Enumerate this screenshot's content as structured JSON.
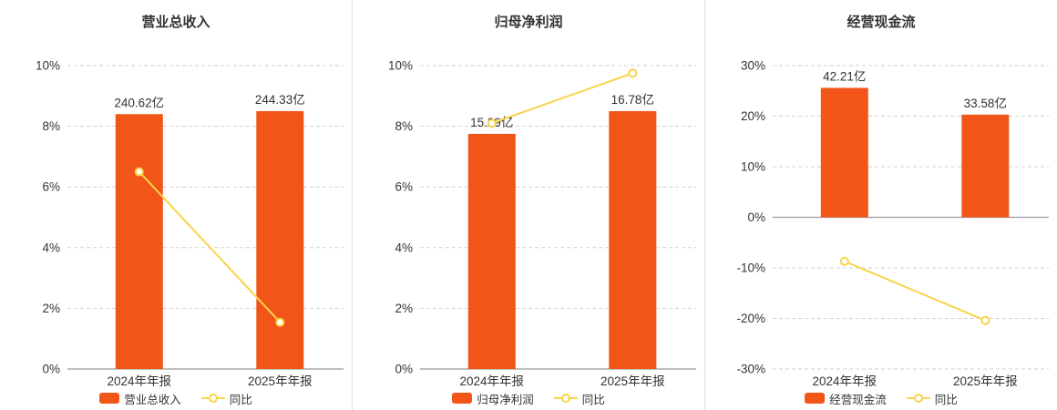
{
  "chart_data": [
    {
      "type": "bar",
      "title": "营业总收入",
      "categories": [
        "2024年年报",
        "2025年年报"
      ],
      "bar_series": {
        "name": "营业总收入",
        "values_yi": [
          240.62,
          244.33
        ],
        "labels": [
          "240.62亿",
          "244.33亿"
        ]
      },
      "line_series": {
        "name": "同比",
        "values_pct": [
          6.5,
          1.54
        ]
      },
      "ylim": [
        0,
        10
      ],
      "yticks_pct": [
        10,
        8,
        6,
        4,
        2,
        0
      ],
      "ytick_suffix": "%",
      "bar_display_pct": [
        8.4,
        8.5
      ],
      "legend_position": "bottom",
      "grid": "dashed-horizontal"
    },
    {
      "type": "bar",
      "title": "归母净利润",
      "categories": [
        "2024年年报",
        "2025年年报"
      ],
      "bar_series": {
        "name": "归母净利润",
        "values_yi": [
          15.29,
          16.78
        ],
        "labels": [
          "15.29亿",
          "16.78亿"
        ]
      },
      "line_series": {
        "name": "同比",
        "values_pct": [
          8.1,
          9.75
        ]
      },
      "ylim": [
        0,
        10
      ],
      "yticks_pct": [
        10,
        8,
        6,
        4,
        2,
        0
      ],
      "ytick_suffix": "%",
      "bar_display_pct": [
        7.75,
        8.5
      ],
      "legend_position": "bottom",
      "grid": "dashed-horizontal"
    },
    {
      "type": "bar",
      "title": "经营现金流",
      "categories": [
        "2024年年报",
        "2025年年报"
      ],
      "bar_series": {
        "name": "经营现金流",
        "values_yi": [
          42.21,
          33.58
        ],
        "labels": [
          "42.21亿",
          "33.58亿"
        ]
      },
      "line_series": {
        "name": "同比",
        "values_pct": [
          -8.7,
          -20.4
        ]
      },
      "ylim": [
        -30,
        30
      ],
      "yticks_pct": [
        30,
        20,
        10,
        0,
        -10,
        -20,
        -30
      ],
      "ytick_suffix": "%",
      "bar_display_pct": [
        25.6,
        20.3
      ],
      "legend_position": "bottom",
      "grid": "dashed-horizontal"
    }
  ],
  "colors": {
    "bar": "#f25518",
    "line": "#f7d449",
    "grid": "#d2d2d2",
    "zero_axis": "#999999",
    "text": "#333333"
  }
}
